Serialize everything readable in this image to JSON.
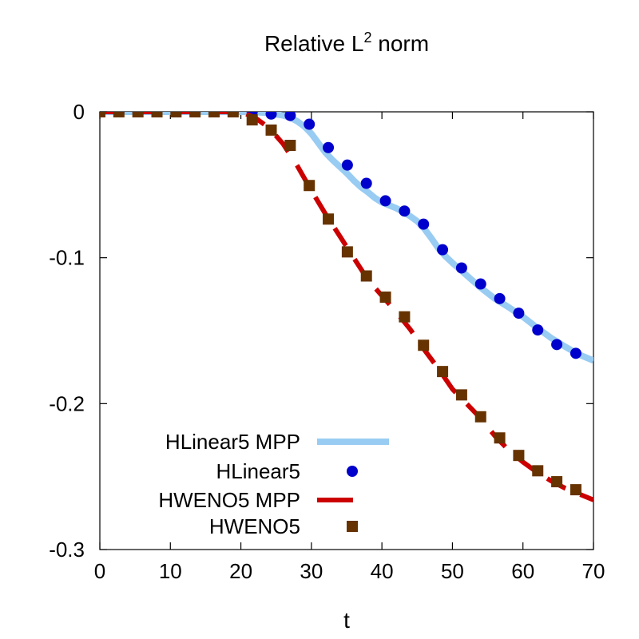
{
  "chart_data": {
    "type": "line",
    "title": "Relative L",
    "title_superscript": "2",
    "title_suffix": " norm",
    "xlabel": "t",
    "ylabel": "",
    "xlim": [
      0,
      70
    ],
    "ylim": [
      -0.3,
      0.0
    ],
    "xticks": [
      0,
      10,
      20,
      30,
      40,
      50,
      60,
      70
    ],
    "xtick_labels": [
      "0",
      "10",
      "20",
      "30",
      "40",
      "50",
      "60",
      "70"
    ],
    "yticks": [
      0,
      -0.1,
      -0.2,
      -0.3
    ],
    "ytick_labels": [
      "0",
      "-0.1",
      "-0.2",
      "-0.3"
    ],
    "grid": false,
    "legend_position": "bottom-left",
    "series": [
      {
        "name": "HLinear5 MPP",
        "style": "line",
        "color": "#99ccf2",
        "x": [
          0,
          10,
          20,
          22,
          24,
          26,
          27,
          28,
          29,
          30,
          31,
          32,
          33,
          34,
          35,
          36,
          37,
          38,
          39,
          40,
          41,
          42,
          43,
          44,
          45,
          46,
          47,
          48,
          49,
          50,
          52,
          54,
          56,
          58,
          60,
          62,
          64,
          66,
          68,
          70
        ],
        "y": [
          0,
          0,
          0,
          -0.0002,
          -0.0008,
          -0.0025,
          -0.004,
          -0.0065,
          -0.01,
          -0.015,
          -0.0215,
          -0.028,
          -0.033,
          -0.0375,
          -0.042,
          -0.047,
          -0.0515,
          -0.055,
          -0.059,
          -0.062,
          -0.064,
          -0.066,
          -0.0685,
          -0.0715,
          -0.075,
          -0.08,
          -0.0865,
          -0.0935,
          -0.099,
          -0.1035,
          -0.112,
          -0.1205,
          -0.128,
          -0.134,
          -0.1405,
          -0.148,
          -0.155,
          -0.161,
          -0.1665,
          -0.1705
        ]
      },
      {
        "name": "HLinear5",
        "style": "circle",
        "color": "#0000cc",
        "x": [
          0,
          2.7,
          5.4,
          8.1,
          10.8,
          13.5,
          16.2,
          18.9,
          21.6,
          24.3,
          27.0,
          29.7,
          32.4,
          35.1,
          37.8,
          40.5,
          43.2,
          45.9,
          48.6,
          51.3,
          54.0,
          56.7,
          59.4,
          62.1,
          64.8,
          67.5
        ],
        "y": [
          0,
          0,
          0,
          0,
          0,
          0,
          0,
          0,
          0,
          -0.0015,
          -0.0025,
          -0.0085,
          -0.0245,
          -0.0365,
          -0.049,
          -0.061,
          -0.068,
          -0.077,
          -0.0945,
          -0.107,
          -0.118,
          -0.128,
          -0.138,
          -0.1495,
          -0.1595,
          -0.1655
        ]
      },
      {
        "name": "HWENO5 MPP",
        "style": "dashed",
        "color": "#cc0000",
        "x": [
          0,
          10,
          20,
          22,
          24,
          26,
          28,
          30,
          32,
          34,
          36,
          38,
          40,
          42,
          44,
          46,
          48,
          50,
          52,
          54,
          56,
          58,
          60,
          62,
          64,
          66,
          68,
          70
        ],
        "y": [
          0,
          0,
          0,
          -0.004,
          -0.011,
          -0.022,
          -0.037,
          -0.054,
          -0.07,
          -0.085,
          -0.1,
          -0.115,
          -0.126,
          -0.137,
          -0.149,
          -0.163,
          -0.176,
          -0.19,
          -0.2,
          -0.21,
          -0.222,
          -0.232,
          -0.24,
          -0.247,
          -0.253,
          -0.258,
          -0.262,
          -0.266
        ]
      },
      {
        "name": "HWENO5",
        "style": "square",
        "color": "#663300",
        "x": [
          0,
          2.7,
          5.4,
          8.1,
          10.8,
          13.5,
          16.2,
          18.9,
          21.6,
          24.3,
          27.0,
          29.7,
          32.4,
          35.1,
          37.8,
          40.5,
          43.2,
          45.9,
          48.6,
          51.3,
          54.0,
          56.7,
          59.4,
          62.1,
          64.8,
          67.5
        ],
        "y": [
          0,
          0,
          0,
          0,
          0,
          0,
          0,
          0,
          -0.0055,
          -0.0125,
          -0.023,
          -0.0505,
          -0.0735,
          -0.096,
          -0.1125,
          -0.127,
          -0.1405,
          -0.16,
          -0.178,
          -0.194,
          -0.209,
          -0.2235,
          -0.2355,
          -0.246,
          -0.2535,
          -0.259
        ]
      }
    ]
  }
}
